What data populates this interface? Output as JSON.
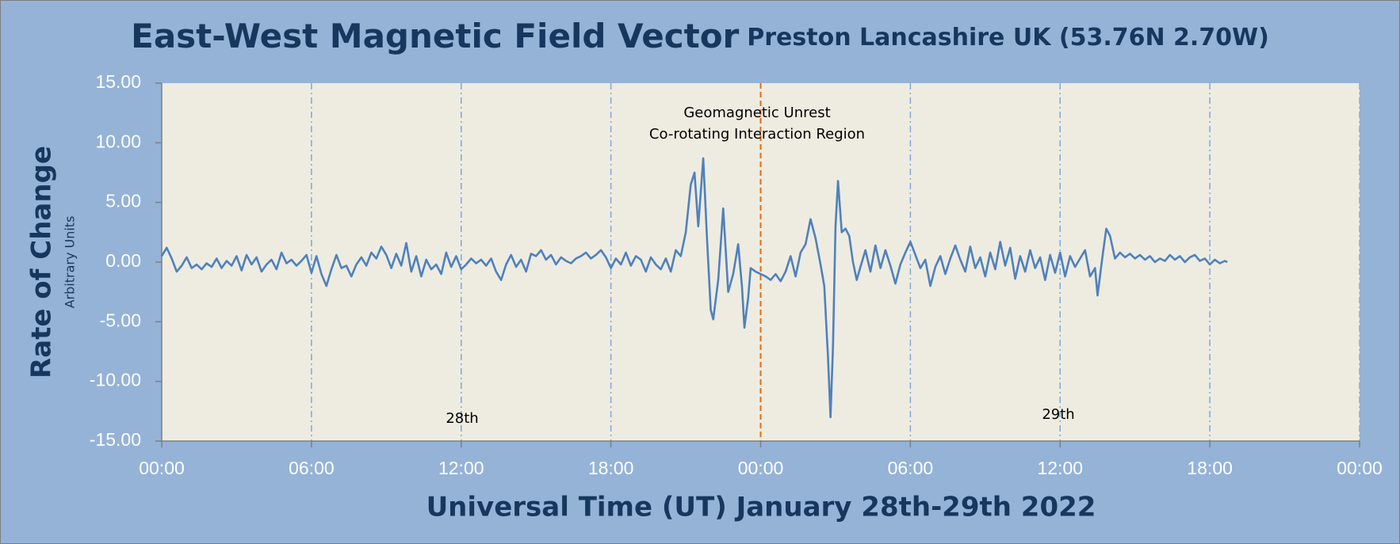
{
  "chart_data": {
    "type": "line",
    "title": "East-West Magnetic Field Vector",
    "subtitle": "Preston Lancashire UK (53.76N 2.70W)",
    "y_label": "Rate of Change",
    "y_sublabel": "Arbitrary Units",
    "x_label": "Universal Time (UT) January 28th-29th 2022",
    "annotations": [
      "Geomagnetic Unrest",
      "Co-rotating Interaction Region"
    ],
    "day_labels": [
      "28th",
      "29th"
    ],
    "reference_line": {
      "x": 24,
      "color": "#e46c0a"
    },
    "grid": true,
    "xlim": [
      0,
      48
    ],
    "xticks": [
      {
        "value": 0,
        "label": "00:00"
      },
      {
        "value": 6,
        "label": "06:00"
      },
      {
        "value": 12,
        "label": "12:00"
      },
      {
        "value": 18,
        "label": "18:00"
      },
      {
        "value": 24,
        "label": "00:00"
      },
      {
        "value": 30,
        "label": "06:00"
      },
      {
        "value": 36,
        "label": "12:00"
      },
      {
        "value": 42,
        "label": "18:00"
      },
      {
        "value": 48,
        "label": "00:00"
      }
    ],
    "ylim": [
      -15,
      15
    ],
    "yticks": [
      {
        "value": -15,
        "label": "-15.00"
      },
      {
        "value": -10,
        "label": "-10.00"
      },
      {
        "value": -5,
        "label": "-5.00"
      },
      {
        "value": 0,
        "label": "0.00"
      },
      {
        "value": 5,
        "label": "5.00"
      },
      {
        "value": 10,
        "label": "10.00"
      },
      {
        "value": 15,
        "label": "15.00"
      }
    ],
    "x": [
      0,
      0.2,
      0.4,
      0.6,
      0.8,
      1.0,
      1.2,
      1.4,
      1.6,
      1.8,
      2.0,
      2.2,
      2.4,
      2.6,
      2.8,
      3.0,
      3.2,
      3.4,
      3.6,
      3.8,
      4.0,
      4.2,
      4.4,
      4.6,
      4.8,
      5.0,
      5.2,
      5.4,
      5.6,
      5.8,
      6.0,
      6.2,
      6.4,
      6.6,
      6.8,
      7.0,
      7.2,
      7.4,
      7.6,
      7.8,
      8.0,
      8.2,
      8.4,
      8.6,
      8.8,
      9.0,
      9.2,
      9.4,
      9.6,
      9.8,
      10.0,
      10.2,
      10.4,
      10.6,
      10.8,
      11.0,
      11.2,
      11.4,
      11.6,
      11.8,
      12.0,
      12.2,
      12.4,
      12.6,
      12.8,
      13.0,
      13.2,
      13.4,
      13.6,
      13.8,
      14.0,
      14.2,
      14.4,
      14.6,
      14.8,
      15.0,
      15.2,
      15.4,
      15.6,
      15.8,
      16.0,
      16.2,
      16.4,
      16.6,
      16.8,
      17.0,
      17.2,
      17.4,
      17.6,
      17.8,
      18.0,
      18.2,
      18.4,
      18.6,
      18.8,
      19.0,
      19.2,
      19.4,
      19.6,
      19.8,
      20.0,
      20.2,
      20.4,
      20.6,
      20.8,
      21.0,
      21.2,
      21.35,
      21.5,
      21.7,
      21.85,
      22.0,
      22.1,
      22.3,
      22.5,
      22.7,
      22.9,
      23.1,
      23.25,
      23.35,
      23.5,
      23.6,
      23.8,
      24.0,
      24.2,
      24.4,
      24.6,
      24.8,
      25.0,
      25.2,
      25.4,
      25.6,
      25.8,
      26.0,
      26.2,
      26.4,
      26.55,
      26.7,
      26.8,
      26.9,
      27.0,
      27.1,
      27.25,
      27.4,
      27.55,
      27.7,
      27.85,
      28.0,
      28.2,
      28.4,
      28.6,
      28.8,
      29.0,
      29.2,
      29.4,
      29.6,
      29.8,
      30.0,
      30.2,
      30.4,
      30.6,
      30.8,
      31.0,
      31.2,
      31.4,
      31.6,
      31.8,
      32.0,
      32.2,
      32.4,
      32.6,
      32.8,
      33.0,
      33.2,
      33.4,
      33.6,
      33.8,
      34.0,
      34.2,
      34.4,
      34.6,
      34.8,
      35.0,
      35.2,
      35.4,
      35.6,
      35.8,
      36.0,
      36.2,
      36.4,
      36.6,
      36.8,
      37.0,
      37.2,
      37.4,
      37.5,
      37.7,
      37.85,
      38.0,
      38.2,
      38.4,
      38.6,
      38.8,
      39.0,
      39.2,
      39.4,
      39.6,
      39.8,
      40.0,
      40.2,
      40.4,
      40.6,
      40.8,
      41.0,
      41.2,
      41.4,
      41.6,
      41.8,
      42.0,
      42.2,
      42.4,
      42.6,
      42.7
    ],
    "series": [
      {
        "name": "East-West",
        "color": "#4f81bd",
        "values": [
          0.5,
          1.2,
          0.3,
          -0.8,
          -0.3,
          0.4,
          -0.5,
          -0.2,
          -0.6,
          -0.1,
          -0.4,
          0.3,
          -0.5,
          0.1,
          -0.3,
          0.5,
          -0.7,
          0.6,
          -0.2,
          0.4,
          -0.8,
          -0.2,
          0.2,
          -0.6,
          0.8,
          -0.1,
          0.2,
          -0.3,
          0.1,
          0.6,
          -0.9,
          0.5,
          -1.0,
          -2.0,
          -0.6,
          0.6,
          -0.5,
          -0.3,
          -1.2,
          -0.2,
          0.4,
          -0.3,
          0.8,
          0.3,
          1.3,
          0.6,
          -0.5,
          0.7,
          -0.3,
          1.6,
          -0.8,
          0.5,
          -1.2,
          0.2,
          -0.6,
          -0.2,
          -1.0,
          0.8,
          -0.4,
          0.5,
          -0.6,
          -0.2,
          0.3,
          -0.1,
          0.2,
          -0.3,
          0.3,
          -0.8,
          -1.5,
          -0.2,
          0.6,
          -0.4,
          0.2,
          -0.8,
          0.7,
          0.5,
          1.0,
          0.2,
          0.6,
          -0.2,
          0.4,
          0.1,
          -0.1,
          0.3,
          0.5,
          0.8,
          0.3,
          0.6,
          1.0,
          0.4,
          -0.5,
          0.3,
          -0.2,
          0.8,
          -0.3,
          0.5,
          0.2,
          -0.8,
          0.4,
          -0.2,
          -0.6,
          0.3,
          -0.8,
          1.0,
          0.5,
          2.5,
          6.5,
          7.5,
          3.0,
          8.7,
          2.0,
          -4.0,
          -4.8,
          -1.5,
          4.5,
          -2.5,
          -1.0,
          1.5,
          -2.0,
          -5.5,
          -3.0,
          -0.5,
          -0.8,
          -1.0,
          -1.2,
          -1.5,
          -1.0,
          -1.6,
          -0.8,
          0.5,
          -1.2,
          0.8,
          1.5,
          3.6,
          2.0,
          -0.2,
          -2.0,
          -8.0,
          -13.0,
          -7.0,
          3.0,
          6.8,
          2.5,
          2.8,
          2.2,
          0.0,
          -1.5,
          -0.4,
          1.0,
          -0.8,
          1.4,
          -0.5,
          1.0,
          -0.3,
          -1.8,
          -0.2,
          0.8,
          1.7,
          0.6,
          -0.5,
          0.2,
          -2.0,
          -0.4,
          0.5,
          -1.0,
          0.3,
          1.4,
          0.2,
          -0.8,
          1.3,
          -0.5,
          0.4,
          -1.2,
          0.8,
          -0.6,
          1.7,
          -0.3,
          1.2,
          -1.4,
          0.5,
          -0.8,
          1.0,
          -0.5,
          0.4,
          -1.5,
          0.6,
          -0.9,
          0.8,
          -1.2,
          0.5,
          -0.4,
          0.3,
          1.0,
          -1.2,
          -0.5,
          -2.8,
          0.5,
          2.8,
          2.2,
          0.3,
          0.8,
          0.4,
          0.7,
          0.3,
          0.6,
          0.2,
          0.5,
          0.0,
          0.3,
          0.1,
          0.6,
          0.2,
          0.5,
          0.0,
          0.4,
          0.6,
          0.1,
          0.3,
          -0.2,
          0.2,
          -0.1,
          0.1,
          0.0
        ]
      }
    ]
  }
}
